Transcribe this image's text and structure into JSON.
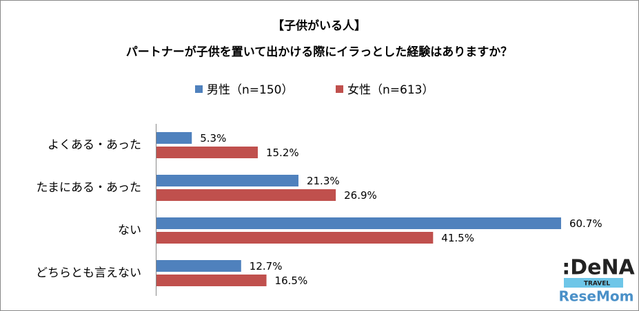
{
  "chart_data": {
    "type": "bar",
    "orientation": "horizontal",
    "title": "【子供がいる人】",
    "subtitle": "パートナーが子供を置いて出かける際にイラっとした経験はありますか？",
    "categories": [
      "よくある・あった",
      "たまにある・あった",
      "ない",
      "どちらとも言えない"
    ],
    "series": [
      {
        "name": "男性（n=150）",
        "color": "#4f81bd",
        "values": [
          5.3,
          21.3,
          60.7,
          12.7
        ],
        "value_labels": [
          "5.3%",
          "21.3%",
          "60.7%",
          "12.7%"
        ]
      },
      {
        "name": "女性（n=613）",
        "color": "#c0504d",
        "values": [
          15.2,
          26.9,
          41.5,
          16.5
        ],
        "value_labels": [
          "15.2%",
          "26.9%",
          "41.5%",
          "16.5%"
        ]
      }
    ],
    "legend": "top"
  },
  "watermark": {
    "brand": ":DeNA",
    "sub": "TRAVEL",
    "site": "ReseMom"
  }
}
